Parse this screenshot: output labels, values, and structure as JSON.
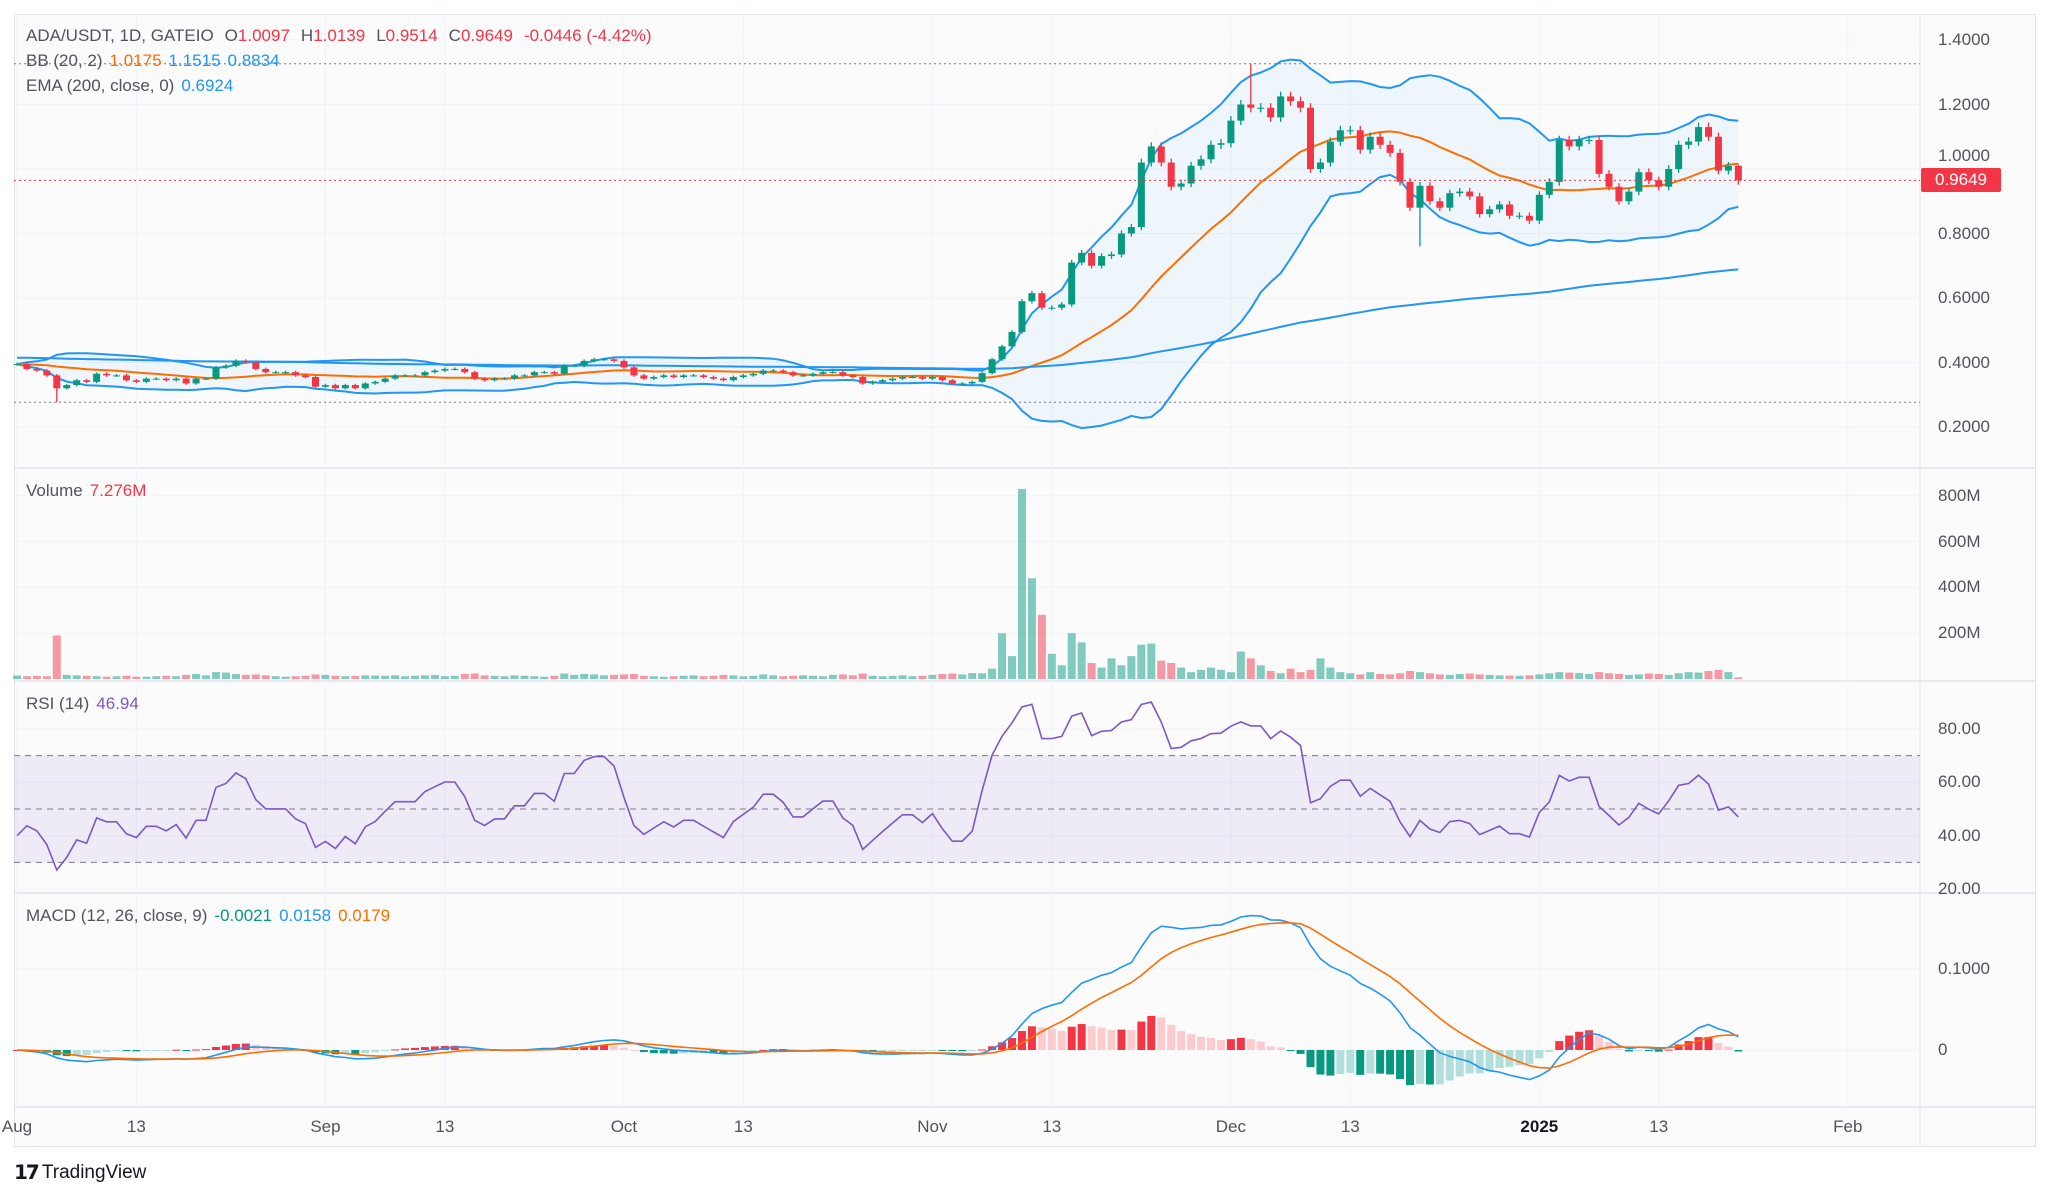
{
  "header": {
    "symbol": "ADA/USDT, 1D, GATEIO",
    "o_label": "O",
    "o": "1.0097",
    "h_label": "H",
    "h": "1.0139",
    "l_label": "L",
    "l": "0.9514",
    "c_label": "C",
    "c": "0.9649",
    "change": "-0.0446 (-4.42%)"
  },
  "bb": {
    "label": "BB (20, 2)",
    "basis": "1.0175",
    "upper": "1.1515",
    "lower": "0.8834"
  },
  "ema": {
    "label": "EMA (200, close, 0)",
    "value": "0.6924"
  },
  "volume": {
    "label": "Volume",
    "value": "7.276M"
  },
  "rsi": {
    "label": "RSI (14)",
    "value": "46.94"
  },
  "macd": {
    "label": "MACD (12, 26, close, 9)",
    "hist": "-0.0021",
    "macd": "0.0158",
    "signal": "0.0179"
  },
  "price_axis": {
    "ticks": [
      "1.4000",
      "1.2000",
      "1.0000",
      "0.8000",
      "0.6000",
      "0.4000",
      "0.2000"
    ],
    "current": "0.9649"
  },
  "volume_axis": {
    "ticks": [
      "800M",
      "600M",
      "400M",
      "200M"
    ]
  },
  "rsi_axis": {
    "ticks": [
      "80.00",
      "60.00",
      "40.00",
      "20.00"
    ],
    "bands": [
      70,
      50,
      30
    ]
  },
  "macd_axis": {
    "ticks": [
      "0.1000",
      "0"
    ]
  },
  "time_axis": [
    {
      "label": "Aug",
      "date": "2024-08-01"
    },
    {
      "label": "13",
      "date": "2024-08-13"
    },
    {
      "label": "Sep",
      "date": "2024-09-01"
    },
    {
      "label": "13",
      "date": "2024-09-13"
    },
    {
      "label": "Oct",
      "date": "2024-10-01"
    },
    {
      "label": "13",
      "date": "2024-10-13"
    },
    {
      "label": "Nov",
      "date": "2024-11-01"
    },
    {
      "label": "13",
      "date": "2024-11-13"
    },
    {
      "label": "Dec",
      "date": "2024-12-01"
    },
    {
      "label": "13",
      "date": "2024-12-13"
    },
    {
      "label": "2025",
      "date": "2025-01-01",
      "bold": true
    },
    {
      "label": "13",
      "date": "2025-01-13"
    },
    {
      "label": "Feb",
      "date": "2025-02-01"
    }
  ],
  "brand": {
    "logo": "TV",
    "name": "TradingView"
  },
  "colors": {
    "up": "#089981",
    "down": "#f23645",
    "bb_band": "#2196f3",
    "bb_basis": "#ff6d00",
    "ema": "#2196f3",
    "rsi": "#7e57c2",
    "macd": "#2196f3",
    "signal": "#ff6d00"
  },
  "chart_data": {
    "type": "candlestick",
    "interval": "1D",
    "start_date": "2024-08-01",
    "ylim": [
      0.15,
      1.45
    ],
    "grid": true,
    "close": [
      0.395,
      0.38,
      0.375,
      0.36,
      0.32,
      0.33,
      0.345,
      0.34,
      0.365,
      0.36,
      0.36,
      0.345,
      0.34,
      0.35,
      0.35,
      0.345,
      0.35,
      0.335,
      0.35,
      0.35,
      0.385,
      0.39,
      0.405,
      0.4,
      0.38,
      0.37,
      0.37,
      0.37,
      0.36,
      0.355,
      0.325,
      0.33,
      0.32,
      0.33,
      0.32,
      0.335,
      0.34,
      0.35,
      0.36,
      0.36,
      0.36,
      0.37,
      0.375,
      0.38,
      0.38,
      0.37,
      0.35,
      0.345,
      0.35,
      0.35,
      0.36,
      0.36,
      0.37,
      0.37,
      0.365,
      0.39,
      0.39,
      0.405,
      0.41,
      0.41,
      0.405,
      0.385,
      0.36,
      0.35,
      0.355,
      0.36,
      0.355,
      0.36,
      0.36,
      0.355,
      0.35,
      0.345,
      0.355,
      0.36,
      0.365,
      0.375,
      0.375,
      0.37,
      0.36,
      0.36,
      0.365,
      0.37,
      0.37,
      0.36,
      0.355,
      0.335,
      0.34,
      0.345,
      0.35,
      0.355,
      0.355,
      0.35,
      0.355,
      0.345,
      0.335,
      0.335,
      0.34,
      0.367,
      0.41,
      0.45,
      0.495,
      0.59,
      0.615,
      0.57,
      0.57,
      0.58,
      0.71,
      0.74,
      0.7,
      0.73,
      0.735,
      0.8,
      0.82,
      1.02,
      1.07,
      1.02,
      0.945,
      0.955,
      1.01,
      1.03,
      1.075,
      1.08,
      1.15,
      1.2,
      1.19,
      1.19,
      1.16,
      1.225,
      1.21,
      1.19,
      1.0,
      1.02,
      1.085,
      1.12,
      1.12,
      1.06,
      1.1,
      1.075,
      1.05,
      0.96,
      0.88,
      0.948,
      0.9,
      0.88,
      0.925,
      0.93,
      0.915,
      0.86,
      0.875,
      0.89,
      0.855,
      0.855,
      0.84,
      0.92,
      0.96,
      1.09,
      1.07,
      1.09,
      1.09,
      0.985,
      0.945,
      0.9,
      0.93,
      0.99,
      0.965,
      0.945,
      1.0,
      1.075,
      1.085,
      1.13,
      1.1,
      0.995,
      1.0097,
      0.9649
    ],
    "wick_extremes": {
      "4": {
        "l": 0.2767
      },
      "124": {
        "h": 1.3264
      },
      "141": {
        "l": 0.76
      },
      "173": {
        "h": 1.0139,
        "l": 0.9514
      }
    },
    "volume_millions": [
      15,
      12,
      14,
      12,
      190,
      18,
      16,
      14,
      12,
      10,
      12,
      14,
      10,
      10,
      12,
      14,
      12,
      18,
      22,
      16,
      30,
      28,
      22,
      18,
      20,
      16,
      12,
      10,
      12,
      14,
      20,
      18,
      14,
      12,
      14,
      16,
      15,
      14,
      16,
      12,
      14,
      16,
      18,
      12,
      14,
      22,
      24,
      16,
      14,
      12,
      16,
      14,
      12,
      10,
      14,
      24,
      18,
      22,
      20,
      16,
      18,
      20,
      22,
      14,
      12,
      10,
      12,
      14,
      16,
      12,
      14,
      18,
      16,
      12,
      14,
      20,
      16,
      12,
      14,
      16,
      14,
      12,
      18,
      20,
      16,
      24,
      14,
      12,
      14,
      16,
      12,
      14,
      18,
      22,
      24,
      20,
      26,
      25,
      45,
      200,
      100,
      830,
      440,
      280,
      110,
      60,
      200,
      160,
      70,
      50,
      90,
      60,
      100,
      150,
      155,
      80,
      70,
      50,
      30,
      40,
      50,
      40,
      30,
      120,
      90,
      60,
      35,
      25,
      45,
      30,
      40,
      90,
      50,
      30,
      25,
      20,
      30,
      22,
      20,
      25,
      35,
      30,
      25,
      20,
      18,
      22,
      24,
      20,
      18,
      16,
      15,
      14,
      16,
      20,
      25,
      30,
      28,
      26,
      22,
      30,
      25,
      22,
      18,
      20,
      24,
      22,
      18,
      25,
      30,
      28,
      35,
      40,
      30,
      7.276
    ],
    "indicators": [
      "BB (20, 2)",
      "EMA (200, close, 0)",
      "Volume",
      "RSI (14)",
      "MACD (12, 26, close, 9)"
    ]
  }
}
